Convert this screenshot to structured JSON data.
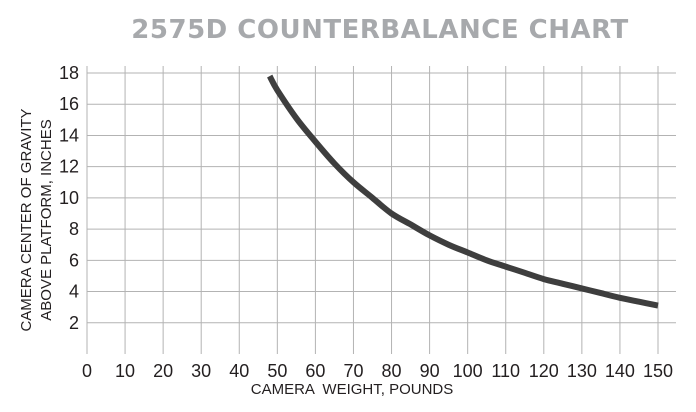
{
  "chart_data": {
    "type": "line",
    "title": "2575D COUNTERBALANCE CHART",
    "xlabel": "CAMERA  WEIGHT, POUNDS",
    "ylabel_line1": "CAMERA CENTER OF GRAVITY",
    "ylabel_line2": "ABOVE PLATFORM, INCHES",
    "xlim": [
      0,
      150
    ],
    "ylim": [
      0,
      18
    ],
    "x_ticks": [
      0,
      10,
      20,
      30,
      40,
      50,
      60,
      70,
      80,
      90,
      100,
      110,
      120,
      130,
      140,
      150
    ],
    "y_ticks": [
      2,
      4,
      6,
      8,
      10,
      12,
      14,
      16,
      18
    ],
    "grid": true,
    "series": [
      {
        "x": [
          48,
          50,
          55,
          60,
          65,
          70,
          75,
          80,
          85,
          90,
          95,
          100,
          105,
          110,
          115,
          120,
          125,
          130,
          135,
          140,
          145,
          150
        ],
        "y": [
          17.8,
          16.9,
          15.1,
          13.6,
          12.2,
          11.0,
          10.0,
          9.0,
          8.3,
          7.6,
          7.0,
          6.5,
          6.0,
          5.6,
          5.2,
          4.8,
          4.5,
          4.2,
          3.9,
          3.6,
          3.35,
          3.1
        ]
      }
    ],
    "colors": {
      "title": "#a7a9ac",
      "grid": "#b3b3b3",
      "line": "#3e3e3e",
      "text": "#231f20"
    }
  }
}
